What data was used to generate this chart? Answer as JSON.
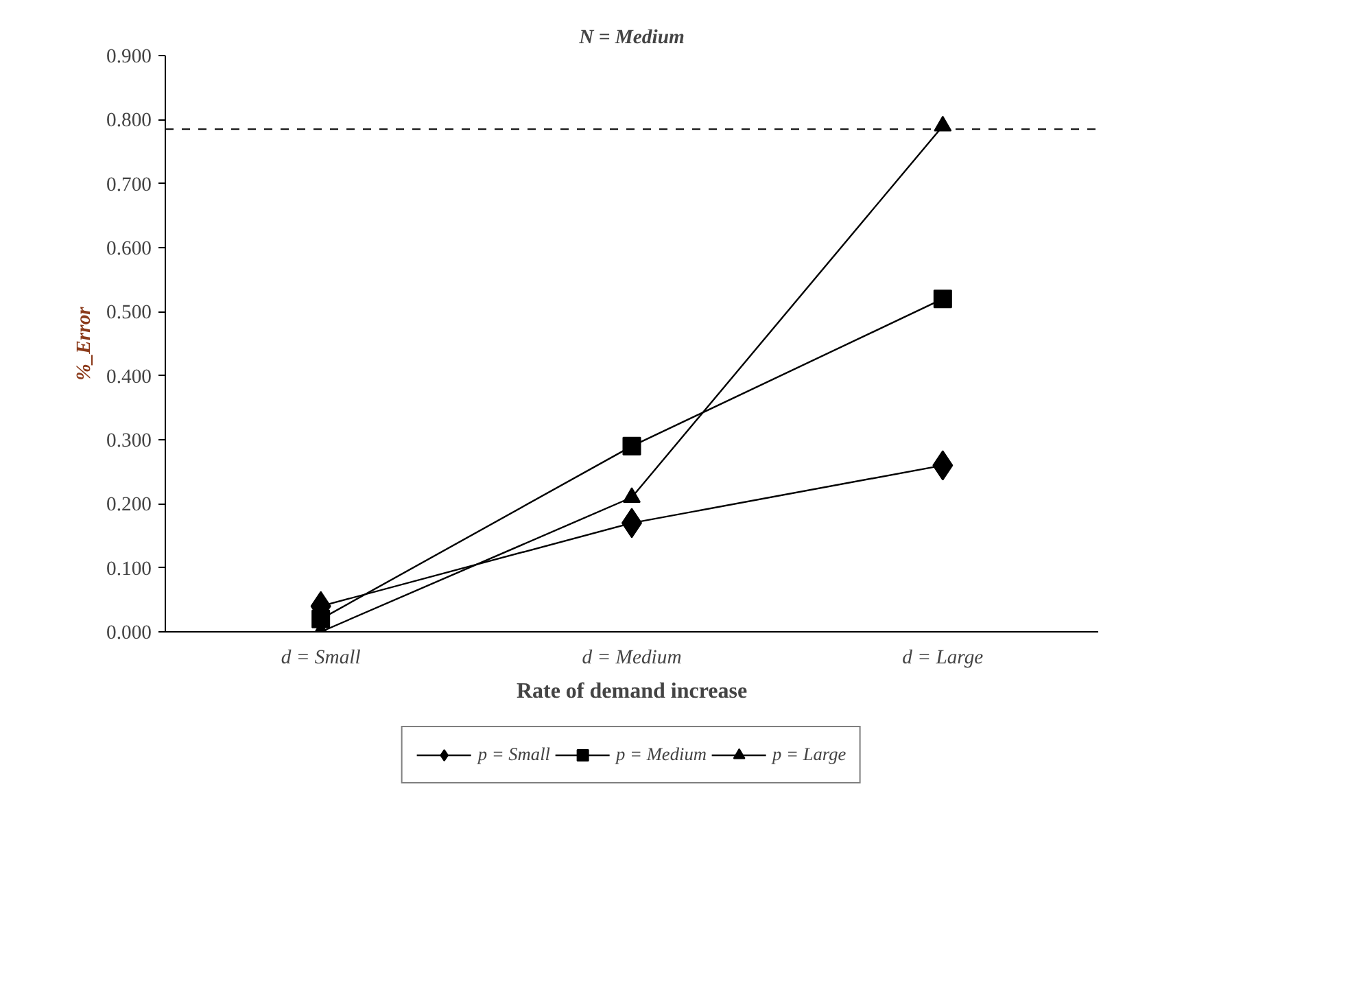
{
  "chart_data": {
    "type": "line",
    "title": "N = Medium",
    "xlabel": "Rate of demand increase",
    "ylabel": "%_Error",
    "categories": [
      "d = Small",
      "d = Medium",
      "d = Large"
    ],
    "series": [
      {
        "name": "p = Small",
        "color": "#000000",
        "marker": "diamond",
        "values": [
          0.04,
          0.17,
          0.26
        ]
      },
      {
        "name": "p = Medium",
        "color": "#000000",
        "marker": "square",
        "values": [
          0.02,
          0.29,
          0.52
        ]
      },
      {
        "name": "p = Large",
        "color": "#000000",
        "marker": "triangle",
        "values": [
          0.0,
          0.21,
          0.79
        ]
      }
    ],
    "ylim": [
      0,
      0.9
    ],
    "yticks": [
      {
        "value": 0,
        "label": "0.000"
      },
      {
        "value": 0.1,
        "label": "0.100"
      },
      {
        "value": 0.2,
        "label": "0.200"
      },
      {
        "value": 0.3,
        "label": "0.300"
      },
      {
        "value": 0.4,
        "label": "0.400"
      },
      {
        "value": 0.5,
        "label": "0.500"
      },
      {
        "value": 0.6,
        "label": "0.600"
      },
      {
        "value": 0.7,
        "label": "0.700"
      },
      {
        "value": 0.8,
        "label": "0.800"
      },
      {
        "value": 0.9,
        "label": "0.900"
      }
    ],
    "ref_lines": [
      {
        "axis": "y",
        "value": 0.785,
        "line_style": "dashed",
        "color": "#000000"
      }
    ],
    "grid": false,
    "legend": "bottom",
    "line_style": "solid"
  }
}
